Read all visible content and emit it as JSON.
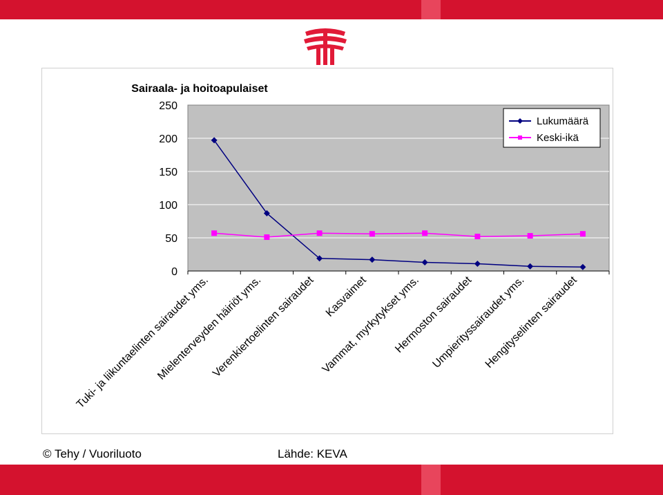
{
  "colors": {
    "band_dark": "#d4122e",
    "band_light": "#e8455c",
    "logo_red": "#e11a38",
    "plot_bg": "#c0c0c0",
    "series_count": "#000080",
    "series_age": "#ff00ff"
  },
  "logo": {
    "icon": "tehy-logo-icon"
  },
  "footer": {
    "credit": "© Tehy / Vuoriluoto",
    "source": "Lähde: KEVA"
  },
  "chart_data": {
    "type": "line",
    "title": "Sairaala- ja hoitoapulaiset",
    "xlabel": "",
    "ylabel": "",
    "ylim": [
      0,
      250
    ],
    "yticks": [
      "0",
      "50",
      "100",
      "150",
      "200",
      "250"
    ],
    "grid": true,
    "legend_position": "top-right",
    "categories": [
      "Tuki- ja liikuntaelinten sairaudet yms.",
      "Mielenterveyden häiriöt yms.",
      "Verenkiertoelinten sairaudet",
      "Kasvaimet",
      "Vammat, myrkytykset yms.",
      "Hermoston sairaudet",
      "Umpierityssairaudet yms.",
      "Hengityselinten sairaudet"
    ],
    "series": [
      {
        "name": "Lukumäärä",
        "marker": "diamond",
        "color": "#000080",
        "values": [
          197,
          87,
          19,
          17,
          13,
          11,
          7,
          6
        ]
      },
      {
        "name": "Keski-ikä",
        "marker": "square",
        "color": "#ff00ff",
        "values": [
          57,
          51,
          57,
          56,
          57,
          52,
          53,
          56
        ]
      }
    ]
  }
}
